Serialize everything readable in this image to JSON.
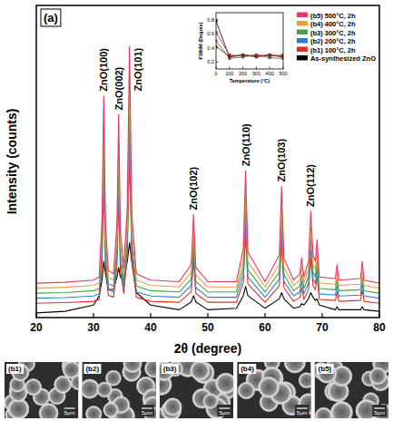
{
  "chart_data": [
    {
      "type": "line",
      "panel": "(a)",
      "x_label": "2θ (degree)",
      "y_label": "Intensity (counts)",
      "xlim": [
        20,
        80
      ],
      "xticks": [
        20,
        30,
        40,
        50,
        60,
        70,
        80
      ],
      "ylim": [
        0,
        100
      ],
      "tick_labels": "x",
      "legend": "top-right",
      "x": [
        20,
        25,
        30,
        31,
        31.5,
        31.8,
        32.1,
        32.6,
        33.5,
        34.1,
        34.4,
        34.7,
        35.3,
        35.9,
        36.3,
        36.7,
        37.5,
        40,
        45,
        47.1,
        47.5,
        47.9,
        50,
        55,
        56.2,
        56.6,
        57.0,
        60,
        62.5,
        62.9,
        63.3,
        65,
        66.1,
        66.4,
        66.8,
        67.6,
        68.0,
        68.4,
        68.8,
        69.1,
        69.5,
        72.3,
        72.6,
        72.9,
        76.7,
        77.0,
        77.3,
        80
      ],
      "series": [
        {
          "name": "(b5) 500°C, 2h",
          "color": "#e8336f",
          "values": [
            11,
            11.3,
            12,
            13,
            32,
            71,
            30,
            15,
            14,
            30,
            65,
            28,
            16,
            35,
            87,
            33,
            14,
            12,
            11.5,
            17,
            33,
            16,
            11.5,
            11.5,
            22,
            47,
            21,
            11.5,
            20,
            42,
            19,
            12,
            14,
            19,
            13,
            18,
            34,
            20,
            18,
            25,
            13,
            12.5,
            17,
            12,
            12.5,
            18,
            12,
            11
          ]
        },
        {
          "name": "(b4) 400°C, 2h",
          "color": "#f39c3d",
          "values": [
            9.4,
            9.7,
            10.3,
            11.1,
            27.3,
            60.4,
            25.6,
            12.8,
            12,
            25.6,
            55.3,
            23.9,
            13.7,
            29.8,
            74,
            28.1,
            12,
            10.3,
            9.8,
            14.5,
            28.1,
            13.7,
            9.8,
            9.8,
            18.8,
            40,
            17.9,
            9.8,
            17.1,
            35.8,
            16.2,
            10.3,
            12,
            16.2,
            11.1,
            15.4,
            29,
            17.1,
            15.4,
            21.3,
            11.1,
            10.7,
            14.5,
            10.3,
            10.7,
            15.4,
            10.3,
            9.4
          ]
        },
        {
          "name": "(b3) 300°C, 2h",
          "color": "#43a047",
          "values": [
            7.8,
            8,
            8.6,
            9.3,
            23.6,
            52.8,
            22.1,
            10.8,
            10.1,
            22.1,
            48.3,
            20.6,
            11.6,
            25.8,
            64.8,
            24.3,
            10.1,
            8.6,
            8.2,
            12.3,
            24.3,
            11.6,
            8.2,
            8.2,
            16.1,
            34.8,
            15.3,
            8.2,
            14.6,
            31.1,
            13.8,
            8.6,
            10.1,
            13.8,
            9.3,
            13.1,
            25.1,
            14.6,
            13.1,
            18.3,
            9.3,
            8.9,
            12.3,
            8.6,
            8.9,
            13.1,
            8.6,
            7.8
          ]
        },
        {
          "name": "(b2) 200°C, 2h",
          "color": "#2f7fd0",
          "values": [
            6.2,
            6.4,
            6.9,
            7.6,
            20.5,
            47,
            19.1,
            8.9,
            8.2,
            19.1,
            42.9,
            17.8,
            9.6,
            22.5,
            57.9,
            21.2,
            8.2,
            6.9,
            6.5,
            10.3,
            21.2,
            9.6,
            6.5,
            6.5,
            13.7,
            30.7,
            13,
            6.5,
            12.3,
            27.3,
            11.6,
            6.9,
            8.2,
            11.6,
            7.6,
            11,
            21.8,
            12.3,
            11,
            15.7,
            7.6,
            7.2,
            10.3,
            6.9,
            7.2,
            11,
            6.9,
            6.2
          ]
        },
        {
          "name": "(b1) 100°C, 2h",
          "color": "#e0301e",
          "values": [
            4.6,
            4.8,
            5.2,
            5.8,
            17.6,
            41.8,
            16.4,
            7.1,
            6.5,
            16.4,
            38.1,
            15.1,
            7.7,
            19.5,
            51.7,
            18.2,
            6.5,
            5.2,
            4.9,
            8.3,
            18.2,
            7.7,
            4.9,
            4.9,
            11.4,
            26.9,
            10.8,
            4.9,
            10.2,
            23.8,
            9.6,
            5.2,
            6.5,
            9.6,
            5.8,
            8.9,
            18.9,
            10.2,
            8.9,
            13.3,
            5.8,
            5.5,
            8.3,
            5.2,
            5.5,
            8.9,
            5.2,
            4.6
          ]
        },
        {
          "name": "As-synthesized ZnO",
          "color": "#000000",
          "values": [
            1.5,
            2,
            4,
            7,
            12,
            18,
            14,
            9,
            9,
            13,
            16,
            13,
            12,
            18,
            24,
            18,
            8,
            4,
            2.5,
            5,
            7,
            5,
            2.5,
            3,
            7,
            10,
            7,
            3,
            6,
            8,
            6,
            3,
            3.5,
            4.5,
            4,
            6,
            8,
            6.5,
            5.5,
            6,
            4,
            2.5,
            3.5,
            2.5,
            2.5,
            3.5,
            2.5,
            2
          ]
        }
      ],
      "annotations": [
        {
          "text": "ZnO(100)",
          "x": 31.8
        },
        {
          "text": "ZnO(002)",
          "x": 34.4
        },
        {
          "text": "ZnO(101)",
          "x": 36.3
        },
        {
          "text": "ZnO(102)",
          "x": 47.5
        },
        {
          "text": "ZnO(110)",
          "x": 56.6
        },
        {
          "text": "ZnO(103)",
          "x": 62.9
        },
        {
          "text": "ZnO(112)",
          "x": 68.0
        }
      ]
    },
    {
      "type": "line",
      "x_label": "Temperature (°C)",
      "y_label": "FWHM (Degree)",
      "xlim": [
        0,
        500
      ],
      "xticks": [
        0,
        100,
        200,
        300,
        400,
        500
      ],
      "ylim": [
        0.1,
        0.9
      ],
      "yticks": [
        0.2,
        0.4,
        0.6,
        0.8
      ],
      "grid": false,
      "marker": "square",
      "x": [
        0,
        100,
        200,
        300,
        400,
        500
      ],
      "series": [
        {
          "color": "#000000",
          "values": [
            0.78,
            0.27,
            0.3,
            0.28,
            0.3,
            0.27
          ]
        },
        {
          "color": "#d62020",
          "values": [
            0.62,
            0.3,
            0.28,
            0.3,
            0.28,
            0.3
          ]
        },
        {
          "color": "#555555",
          "values": [
            0.5,
            0.25,
            0.27,
            0.3,
            0.26,
            0.25
          ]
        },
        {
          "color": "#8b1a1a",
          "values": [
            0.42,
            0.28,
            0.3,
            0.27,
            0.3,
            0.28
          ]
        }
      ]
    }
  ],
  "sem_images": [
    {
      "label": "(b1)",
      "scale_bar": "5μm"
    },
    {
      "label": "(b2)",
      "scale_bar": "5μm"
    },
    {
      "label": "(b3)",
      "scale_bar": "5μm"
    },
    {
      "label": "(b4)",
      "scale_bar": "5μm"
    },
    {
      "label": "(b5)",
      "scale_bar": "5μm"
    }
  ]
}
